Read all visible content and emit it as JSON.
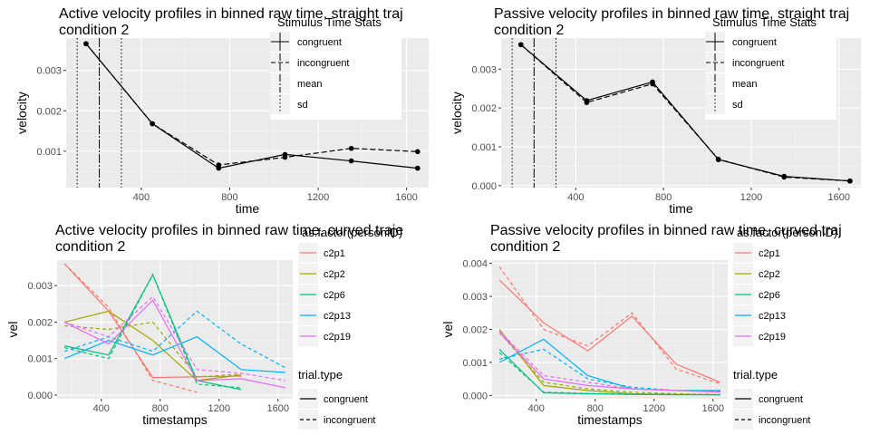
{
  "chart_data": [
    {
      "type": "line",
      "title_lines": [
        "Active velocity profiles in binned raw time, straight traj",
        "condition 2"
      ],
      "xlabel": "time",
      "ylabel": "velocity",
      "xlim": [
        60,
        1700
      ],
      "ylim": [
        0.0001,
        0.0038
      ],
      "xticks": [
        400,
        800,
        1200,
        1600
      ],
      "yticks": [
        0.001,
        0.002,
        0.003
      ],
      "ytick_labels": [
        "0.001",
        "0.002",
        "0.003"
      ],
      "grid": true,
      "legend_title": "Stimulus Time Stats",
      "legend_entries": [
        "congruent",
        "incongruent",
        "mean",
        "sd"
      ],
      "vlines": {
        "mean": 210,
        "sd": [
          110,
          310
        ]
      },
      "series": [
        {
          "name": "congruent",
          "x": [
            150,
            450,
            750,
            1050,
            1350,
            1650
          ],
          "y": [
            0.00366,
            0.00168,
            0.00058,
            0.00092,
            0.00076,
            0.00058
          ]
        },
        {
          "name": "incongruent",
          "x": [
            150,
            450,
            750,
            1050,
            1350,
            1650
          ],
          "y": [
            0.00366,
            0.00168,
            0.00066,
            0.00085,
            0.00107,
            0.00099
          ]
        }
      ]
    },
    {
      "type": "line",
      "title_lines": [
        "Passive velocity profiles in binned raw time, straight traj",
        "condition 2"
      ],
      "xlabel": "time",
      "ylabel": "velocity",
      "xlim": [
        60,
        1700
      ],
      "ylim": [
        -5e-05,
        0.0038
      ],
      "xticks": [
        400,
        800,
        1200,
        1600
      ],
      "yticks": [
        0.0,
        0.001,
        0.002,
        0.003
      ],
      "ytick_labels": [
        "0.000",
        "0.001",
        "0.002",
        "0.003"
      ],
      "grid": true,
      "legend_title": "Stimulus Time Stats",
      "legend_entries": [
        "congruent",
        "incongruent",
        "mean",
        "sd"
      ],
      "vlines": {
        "mean": 210,
        "sd": [
          110,
          310
        ]
      },
      "series": [
        {
          "name": "congruent",
          "x": [
            150,
            450,
            750,
            1050,
            1350,
            1650
          ],
          "y": [
            0.00363,
            0.00219,
            0.00267,
            0.00067,
            0.00024,
            0.00012
          ]
        },
        {
          "name": "incongruent",
          "x": [
            150,
            450,
            750,
            1050,
            1350,
            1650
          ],
          "y": [
            0.00363,
            0.00214,
            0.00262,
            0.00068,
            0.00022,
            0.00012
          ]
        }
      ]
    },
    {
      "type": "line",
      "title_lines": [
        "Active velocity profiles in binned raw time, curved traje",
        "condition 2"
      ],
      "xlabel": "timestamps",
      "ylabel": "vel",
      "xlim": [
        100,
        1700
      ],
      "ylim": [
        -0.0001,
        0.0037
      ],
      "xticks": [
        400,
        800,
        1200,
        1600
      ],
      "yticks": [
        0.0,
        0.001,
        0.002,
        0.003
      ],
      "ytick_labels": [
        "0.000",
        "0.001",
        "0.002",
        "0.003"
      ],
      "grid": true,
      "legend_title": "as.factor(personID)",
      "legend_entries": [
        "c2p1",
        "c2p2",
        "c2p6",
        "c2p13",
        "c2p19"
      ],
      "legend2_title": "trial.type",
      "legend2_entries": [
        "congruent",
        "incongruent"
      ],
      "series": [
        {
          "name": "c2p1",
          "type": "congruent",
          "color": "#F8766D",
          "x": [
            150,
            450,
            750,
            1050,
            1350
          ],
          "y": [
            0.0036,
            0.0023,
            0.00048,
            0.0005,
            0.00052
          ]
        },
        {
          "name": "c2p1",
          "type": "incongruent",
          "color": "#F8766D",
          "x": [
            150,
            450,
            750,
            1050
          ],
          "y": [
            0.0036,
            0.0024,
            0.0004,
            8e-05
          ]
        },
        {
          "name": "c2p2",
          "type": "congruent",
          "color": "#A3A500",
          "x": [
            150,
            450,
            750,
            1050,
            1350
          ],
          "y": [
            0.002,
            0.0023,
            0.0015,
            0.0004,
            0.00055
          ]
        },
        {
          "name": "c2p2",
          "type": "incongruent",
          "color": "#A3A500",
          "x": [
            150,
            450,
            750,
            1050,
            1350
          ],
          "y": [
            0.0019,
            0.0018,
            0.002,
            0.0005,
            0.00057
          ]
        },
        {
          "name": "c2p6",
          "type": "congruent",
          "color": "#00BF7D",
          "x": [
            150,
            450,
            750,
            1050,
            1350
          ],
          "y": [
            0.00135,
            0.0011,
            0.0033,
            0.0004,
            0.00015
          ]
        },
        {
          "name": "c2p6",
          "type": "incongruent",
          "color": "#00BF7D",
          "x": [
            150,
            450,
            750,
            1050,
            1350
          ],
          "y": [
            0.0013,
            0.001,
            0.0033,
            0.0003,
            0.0002
          ]
        },
        {
          "name": "c2p13",
          "type": "congruent",
          "color": "#00B0F6",
          "x": [
            150,
            450,
            750,
            1050,
            1350,
            1650
          ],
          "y": [
            0.001,
            0.0015,
            0.0011,
            0.0016,
            0.0007,
            0.00062
          ]
        },
        {
          "name": "c2p13",
          "type": "incongruent",
          "color": "#00B0F6",
          "x": [
            150,
            450,
            750,
            1050,
            1350,
            1650
          ],
          "y": [
            0.0012,
            0.0016,
            0.0012,
            0.0023,
            0.0014,
            0.00075
          ]
        },
        {
          "name": "c2p19",
          "type": "congruent",
          "color": "#E76BF3",
          "x": [
            150,
            450,
            750,
            1050,
            1350,
            1650
          ],
          "y": [
            0.002,
            0.0014,
            0.0026,
            0.0004,
            0.00045,
            0.0002
          ]
        },
        {
          "name": "c2p19",
          "type": "incongruent",
          "color": "#E76BF3",
          "x": [
            150,
            450,
            750,
            1050,
            1350,
            1650
          ],
          "y": [
            0.002,
            0.0016,
            0.0027,
            0.0007,
            0.0006,
            0.0004
          ]
        }
      ]
    },
    {
      "type": "line",
      "title_lines": [
        "Passive velocity profiles in binned raw time, curved traj",
        "condition 2"
      ],
      "xlabel": "timestamps",
      "ylabel": "vel",
      "xlim": [
        100,
        1700
      ],
      "ylim": [
        -0.0001,
        0.0041
      ],
      "xticks": [
        400,
        800,
        1200,
        1600
      ],
      "yticks": [
        0.0,
        0.001,
        0.002,
        0.003,
        0.004
      ],
      "ytick_labels": [
        "0.000",
        "0.001",
        "0.002",
        "0.003",
        "0.004"
      ],
      "grid": true,
      "legend_title": "as.factor(personID)",
      "legend_entries": [
        "c2p1",
        "c2p2",
        "c2p6",
        "c2p13",
        "c2p19"
      ],
      "legend2_title": "trial.type",
      "legend2_entries": [
        "congruent",
        "incongruent"
      ],
      "series": [
        {
          "name": "c2p1",
          "type": "congruent",
          "color": "#F8766D",
          "x": [
            150,
            450,
            750,
            1050,
            1350,
            1650
          ],
          "y": [
            0.0035,
            0.0022,
            0.00135,
            0.0024,
            0.00095,
            0.0004
          ]
        },
        {
          "name": "c2p1",
          "type": "incongruent",
          "color": "#F8766D",
          "x": [
            150,
            450,
            750,
            1050,
            1350,
            1650
          ],
          "y": [
            0.0039,
            0.002,
            0.0015,
            0.0025,
            0.0008,
            0.00035
          ]
        },
        {
          "name": "c2p2",
          "type": "congruent",
          "color": "#A3A500",
          "x": [
            150,
            450,
            750,
            1050,
            1350,
            1650
          ],
          "y": [
            0.002,
            0.0003,
            0.00015,
            5e-05,
            3e-05,
            2e-05
          ]
        },
        {
          "name": "c2p2",
          "type": "incongruent",
          "color": "#A3A500",
          "x": [
            150,
            450,
            750,
            1050,
            1350,
            1650
          ],
          "y": [
            0.0019,
            0.0004,
            0.0002,
            0.0001,
            5e-05,
            3e-05
          ]
        },
        {
          "name": "c2p6",
          "type": "congruent",
          "color": "#00BF7D",
          "x": [
            150,
            450,
            750,
            1050,
            1350,
            1650
          ],
          "y": [
            0.0014,
            8e-05,
            5e-05,
            3e-05,
            2e-05,
            2e-05
          ]
        },
        {
          "name": "c2p6",
          "type": "incongruent",
          "color": "#00BF7D",
          "x": [
            150,
            450,
            750,
            1050,
            1350,
            1650
          ],
          "y": [
            0.0013,
            0.0001,
            6e-05,
            4e-05,
            3e-05,
            2e-05
          ]
        },
        {
          "name": "c2p13",
          "type": "congruent",
          "color": "#00B0F6",
          "x": [
            150,
            450,
            750,
            1050,
            1350,
            1650
          ],
          "y": [
            0.001,
            0.0017,
            0.0006,
            0.0002,
            0.00015,
            0.00015
          ]
        },
        {
          "name": "c2p13",
          "type": "incongruent",
          "color": "#00B0F6",
          "x": [
            150,
            450,
            750,
            1050,
            1350,
            1650
          ],
          "y": [
            0.0011,
            0.0014,
            0.0005,
            0.00025,
            0.00015,
            0.00012
          ]
        },
        {
          "name": "c2p19",
          "type": "congruent",
          "color": "#E76BF3",
          "x": [
            150,
            450,
            750,
            1050,
            1350,
            1650
          ],
          "y": [
            0.0019,
            0.0005,
            0.0003,
            0.0002,
            0.00015,
            0.0001
          ]
        },
        {
          "name": "c2p19",
          "type": "incongruent",
          "color": "#E76BF3",
          "x": [
            150,
            450,
            750,
            1050,
            1350,
            1650
          ],
          "y": [
            0.00195,
            0.0006,
            0.0004,
            0.0002,
            0.00015,
            0.0001
          ]
        }
      ]
    }
  ]
}
